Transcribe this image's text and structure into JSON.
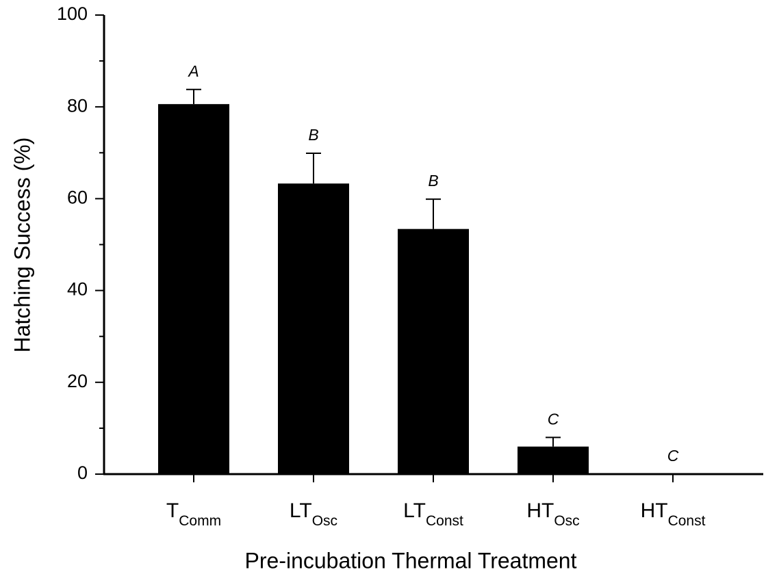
{
  "chart_data": {
    "type": "bar",
    "xlabel": "Pre-incubation Thermal Treatment",
    "ylabel": "Hatching Success (%)",
    "categories": [
      {
        "base": "T",
        "sub": "Comm"
      },
      {
        "base": "LT",
        "sub": "Osc"
      },
      {
        "base": "LT",
        "sub": "Const"
      },
      {
        "base": "HT",
        "sub": "Osc"
      },
      {
        "base": "HT",
        "sub": "Const"
      }
    ],
    "values": [
      80.6,
      63.3,
      53.4,
      6.0,
      0
    ],
    "errors": [
      3.2,
      6.6,
      6.5,
      2.0,
      null
    ],
    "letters": [
      "A",
      "B",
      "B",
      "C",
      "C"
    ],
    "color": "#000000",
    "ylim": [
      0,
      100
    ],
    "yticks": [
      0,
      20,
      40,
      60,
      80,
      100
    ],
    "minor_yticks": [
      10,
      30,
      50,
      70,
      90
    ]
  }
}
